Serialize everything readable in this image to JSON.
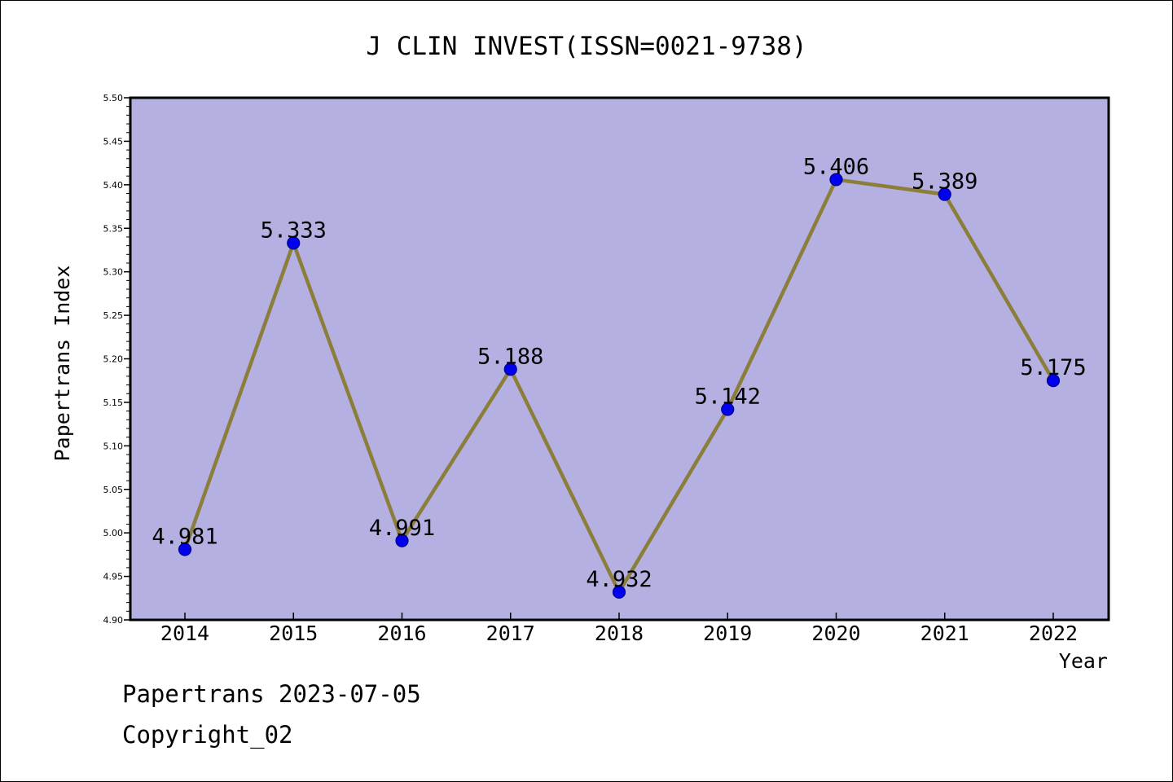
{
  "chart_data": {
    "type": "line",
    "title": "J CLIN INVEST(ISSN=0021-9738)",
    "xlabel": "Year",
    "ylabel": "Papertrans Index",
    "categories": [
      "2014",
      "2015",
      "2016",
      "2017",
      "2018",
      "2019",
      "2020",
      "2021",
      "2022"
    ],
    "series": [
      {
        "values": [
          4.981,
          5.333,
          4.991,
          5.188,
          4.932,
          5.142,
          5.406,
          5.389,
          5.175
        ],
        "point_labels": [
          "4.981",
          "5.333",
          "4.991",
          "5.188",
          "4.932",
          "5.142",
          "5.406",
          "5.389",
          "5.175"
        ]
      }
    ],
    "ylim": [
      4.9,
      5.5
    ],
    "ytick_step": 0.05,
    "ytick_labels": [
      "4.90",
      "4.95",
      "5.00",
      "5.05",
      "5.10",
      "5.15",
      "5.20",
      "5.25",
      "5.30",
      "5.35",
      "5.40",
      "5.45",
      "5.50"
    ],
    "grid": false,
    "legend": "none",
    "colors": {
      "plot_background": "#b5b0e2",
      "line": "#8b7d3a",
      "marker_fill": "#0000ee",
      "marker_edge": "#00008b"
    }
  },
  "footer": {
    "line1": "Papertrans 2023-07-05",
    "line2": "Copyright_02"
  }
}
